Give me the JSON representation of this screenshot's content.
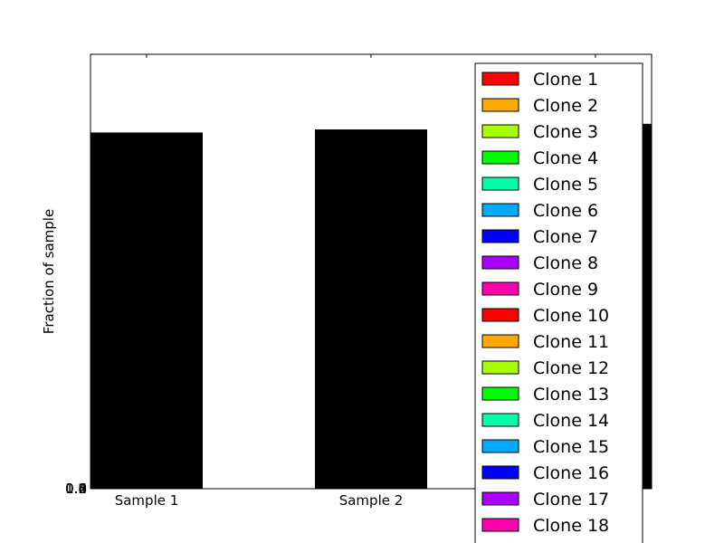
{
  "chart_data": {
    "type": "bar",
    "stacked": true,
    "ylabel": "Fraction of sample",
    "xlabel": "",
    "title": "",
    "categories": [
      "Sample 1",
      "Sample 2",
      ""
    ],
    "totals": [
      0.82,
      0.827,
      0.84
    ],
    "y_tick_labels": [
      "0.0",
      "0.2",
      "0.4",
      "0.6",
      "0.8",
      "1.0"
    ],
    "ylim": [
      0,
      1
    ],
    "legend_position": "right",
    "legend_entries": [
      {
        "name": "Clone 1",
        "color": "#ff0000"
      },
      {
        "name": "Clone 2",
        "color": "#ffaa00"
      },
      {
        "name": "Clone 3",
        "color": "#aaff00"
      },
      {
        "name": "Clone 4",
        "color": "#00ff00"
      },
      {
        "name": "Clone 5",
        "color": "#00ffaa"
      },
      {
        "name": "Clone 6",
        "color": "#00aaff"
      },
      {
        "name": "Clone 7",
        "color": "#0000ff"
      },
      {
        "name": "Clone 8",
        "color": "#aa00ff"
      },
      {
        "name": "Clone 9",
        "color": "#ff00aa"
      },
      {
        "name": "Clone 10",
        "color": "#ff0000"
      },
      {
        "name": "Clone 11",
        "color": "#ffaa00"
      },
      {
        "name": "Clone 12",
        "color": "#aaff00"
      },
      {
        "name": "Clone 13",
        "color": "#00ff00"
      },
      {
        "name": "Clone 14",
        "color": "#00ffaa"
      },
      {
        "name": "Clone 15",
        "color": "#00aaff"
      },
      {
        "name": "Clone 16",
        "color": "#0000ff"
      },
      {
        "name": "Clone 17",
        "color": "#aa00ff"
      },
      {
        "name": "Clone 18",
        "color": "#ff00aa"
      }
    ],
    "bar_color": "#000000"
  }
}
